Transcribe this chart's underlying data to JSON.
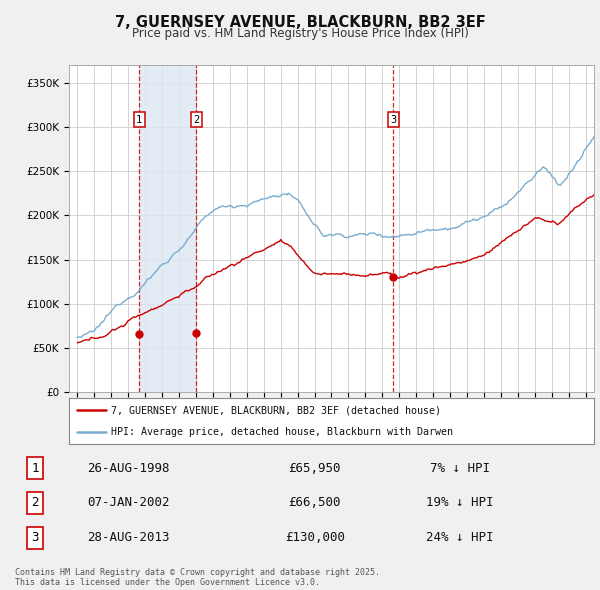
{
  "title": "7, GUERNSEY AVENUE, BLACKBURN, BB2 3EF",
  "subtitle": "Price paid vs. HM Land Registry's House Price Index (HPI)",
  "legend_line1": "7, GUERNSEY AVENUE, BLACKBURN, BB2 3EF (detached house)",
  "legend_line2": "HPI: Average price, detached house, Blackburn with Darwen",
  "footer": "Contains HM Land Registry data © Crown copyright and database right 2025.\nThis data is licensed under the Open Government Licence v3.0.",
  "transactions": [
    {
      "label": "1",
      "date": "26-AUG-1998",
      "price": 65950,
      "hpi_diff": "7% ↓ HPI",
      "x": 1998.65
    },
    {
      "label": "2",
      "date": "07-JAN-2002",
      "price": 66500,
      "hpi_diff": "19% ↓ HPI",
      "x": 2002.02
    },
    {
      "label": "3",
      "date": "28-AUG-2013",
      "price": 130000,
      "hpi_diff": "24% ↓ HPI",
      "x": 2013.65
    }
  ],
  "ylim": [
    0,
    370000
  ],
  "xlim": [
    1994.5,
    2025.5
  ],
  "yticks": [
    0,
    50000,
    100000,
    150000,
    200000,
    250000,
    300000,
    350000
  ],
  "price_line_color": "#cc0000",
  "hpi_line_color": "#7aadcf",
  "hpi_fill_color": "#dce8f3",
  "background_color": "#f0f0f0",
  "plot_bg_color": "#ffffff",
  "grid_color": "#cccccc",
  "shade_between_1_2": true
}
